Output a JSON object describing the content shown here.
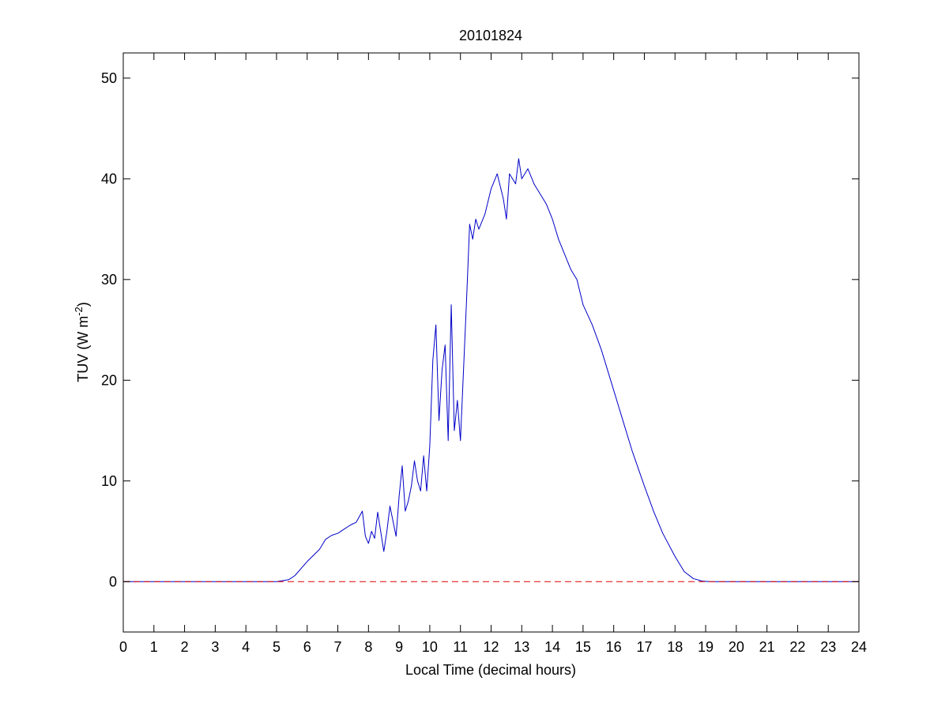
{
  "chart_data": {
    "type": "line",
    "title": "20101824",
    "xlabel": "Local Time (decimal hours)",
    "ylabel_main": "TUV (W m",
    "ylabel_sup": "-2",
    "ylabel_tail": ")",
    "xlim": [
      0,
      24
    ],
    "ylim": [
      -5,
      52.5
    ],
    "xticks": [
      0,
      1,
      2,
      3,
      4,
      5,
      6,
      7,
      8,
      9,
      10,
      11,
      12,
      13,
      14,
      15,
      16,
      17,
      18,
      19,
      20,
      21,
      22,
      23,
      24
    ],
    "yticks": [
      0,
      10,
      20,
      30,
      40,
      50
    ],
    "grid": false,
    "colors": {
      "series": "#0000c8",
      "reference": "#dd0000",
      "axes": "#000000"
    },
    "series": [
      {
        "style": "solid",
        "x": [
          0,
          5.0,
          5.2,
          5.4,
          5.6,
          5.8,
          6.0,
          6.2,
          6.4,
          6.6,
          6.8,
          7.0,
          7.2,
          7.4,
          7.6,
          7.8,
          7.9,
          8.0,
          8.1,
          8.2,
          8.3,
          8.5,
          8.6,
          8.7,
          8.8,
          8.9,
          9.0,
          9.1,
          9.2,
          9.3,
          9.4,
          9.5,
          9.6,
          9.7,
          9.8,
          9.9,
          10.0,
          10.1,
          10.2,
          10.3,
          10.4,
          10.5,
          10.6,
          10.7,
          10.8,
          10.9,
          11.0,
          11.1,
          11.2,
          11.3,
          11.4,
          11.5,
          11.6,
          11.8,
          12.0,
          12.2,
          12.4,
          12.5,
          12.6,
          12.8,
          12.9,
          13.0,
          13.2,
          13.4,
          13.6,
          13.8,
          14.0,
          14.2,
          14.4,
          14.6,
          14.8,
          15.0,
          15.3,
          15.6,
          16.0,
          16.3,
          16.6,
          17.0,
          17.3,
          17.6,
          18.0,
          18.3,
          18.6,
          18.9,
          19.1,
          19.3,
          19.5,
          24
        ],
        "y": [
          0,
          0,
          0.1,
          0.2,
          0.6,
          1.3,
          2.0,
          2.6,
          3.2,
          4.2,
          4.6,
          4.8,
          5.2,
          5.6,
          5.9,
          7.0,
          4.5,
          3.8,
          5.0,
          4.3,
          6.9,
          3.0,
          5.0,
          7.5,
          6.0,
          4.5,
          8.5,
          11.5,
          7.0,
          8.0,
          9.5,
          12.0,
          10.0,
          9.0,
          12.5,
          9.0,
          13.5,
          22.0,
          25.5,
          16.0,
          21.0,
          23.5,
          14.0,
          27.5,
          15.0,
          18.0,
          14.0,
          21.0,
          28.0,
          35.5,
          34.0,
          36.0,
          35.0,
          36.5,
          39.0,
          40.5,
          38.0,
          36.0,
          40.5,
          39.5,
          42.0,
          40.0,
          41.0,
          39.5,
          38.5,
          37.5,
          36.0,
          34.0,
          32.5,
          31.0,
          30.0,
          27.5,
          25.5,
          23.0,
          19.0,
          16.0,
          13.0,
          9.5,
          7.0,
          4.8,
          2.5,
          1.0,
          0.3,
          0.05,
          0.01,
          0,
          0,
          0
        ]
      },
      {
        "style": "dashed",
        "x": [
          0,
          24
        ],
        "y": [
          0,
          0
        ]
      }
    ]
  }
}
